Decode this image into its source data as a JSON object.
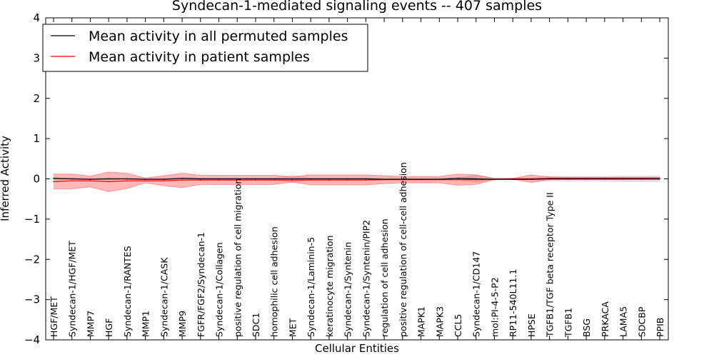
{
  "chart_data": {
    "type": "line",
    "title": "Syndecan-1-mediated signaling events -- 407 samples",
    "xlabel": "Cellular Entities",
    "ylabel": "Inferred Activity",
    "ylim": [
      -4,
      4
    ],
    "yticks": [
      -4,
      -3,
      -2,
      -1,
      0,
      1,
      2,
      3,
      4
    ],
    "ytick_labels": [
      "−4",
      "−3",
      "−2",
      "−1",
      "0",
      "1",
      "2",
      "3",
      "4"
    ],
    "legend_position": "top-left",
    "categories": [
      "HGF/MET",
      "Syndecan-1/HGF/MET",
      "MMP7",
      "HGF",
      "Syndecan-1/RANTES",
      "MMP1",
      "Syndecan-1/CASK",
      "MMP9",
      "FGFR/FGF2/Syndecan-1",
      "Syndecan-1/Collagen",
      "positive regulation of cell migration",
      "SDC1",
      "homophilic cell adhesion",
      "MET",
      "Syndecan-1/Laminin-5",
      "keratinocyte migration",
      "Syndecan-1/Syntenin",
      "Syndecan-1/Syntenin/PIP2",
      "regulation of cell adhesion",
      "positive regulation of cell-cell adhesion",
      "MAPK1",
      "MAPK3",
      "CCL5",
      "Syndecan-1/CD147",
      "mol:PI-4-5-P2",
      "RP11-540L11.1",
      "HPSE",
      "TGFB1/TGF beta receptor Type II",
      "TGFB1",
      "BSG",
      "PRKACA",
      "LAMA5",
      "SDCBP",
      "PPIB"
    ],
    "series": [
      {
        "name": "Mean activity in all permuted samples",
        "color": "#000000",
        "values": [
          0.01,
          0.0,
          -0.01,
          0.0,
          0.0,
          -0.01,
          -0.01,
          0.01,
          0.0,
          0.0,
          0.0,
          0.0,
          0.0,
          0.0,
          0.0,
          0.0,
          0.0,
          0.0,
          -0.01,
          -0.01,
          -0.01,
          -0.01,
          0.01,
          0.0,
          -0.01,
          -0.01,
          -0.01,
          0.0,
          0.0,
          0.0,
          0.0,
          0.0,
          0.0,
          0.0
        ],
        "band_upper": [
          0.03,
          0.03,
          0.03,
          0.03,
          0.03,
          0.03,
          0.03,
          0.04,
          0.03,
          0.03,
          0.03,
          0.03,
          0.03,
          0.1,
          0.03,
          0.03,
          0.03,
          0.03,
          0.03,
          0.03,
          0.03,
          0.03,
          0.04,
          0.1,
          0.03,
          0.03,
          0.03,
          0.07,
          0.07,
          0.07,
          0.07,
          0.08,
          0.08,
          0.08
        ],
        "band_lower": [
          -0.03,
          -0.03,
          -0.03,
          -0.03,
          -0.03,
          -0.03,
          -0.03,
          -0.03,
          -0.03,
          -0.03,
          -0.03,
          -0.03,
          -0.03,
          -0.1,
          -0.03,
          -0.03,
          -0.03,
          -0.03,
          -0.03,
          -0.03,
          -0.03,
          -0.03,
          -0.03,
          -0.1,
          -0.03,
          -0.03,
          -0.03,
          -0.07,
          -0.07,
          -0.07,
          -0.07,
          -0.08,
          -0.08,
          -0.08
        ]
      },
      {
        "name": "Mean activity in patient samples",
        "color": "#ff0000",
        "values": [
          -0.07,
          -0.05,
          -0.05,
          -0.07,
          -0.05,
          -0.05,
          -0.05,
          -0.03,
          -0.03,
          -0.03,
          -0.03,
          -0.03,
          -0.03,
          -0.03,
          -0.03,
          -0.03,
          -0.03,
          -0.03,
          -0.02,
          -0.02,
          -0.02,
          -0.02,
          -0.02,
          -0.02,
          -0.01,
          0.0,
          0.0,
          0.01,
          0.01,
          0.01,
          0.01,
          0.01,
          0.01,
          0.01
        ],
        "band_upper": [
          0.12,
          0.12,
          0.07,
          0.17,
          0.14,
          0.02,
          0.08,
          0.14,
          0.09,
          0.09,
          0.09,
          0.09,
          0.09,
          0.05,
          0.1,
          0.1,
          0.1,
          0.1,
          0.08,
          0.06,
          0.06,
          0.06,
          0.12,
          0.1,
          0.01,
          0.01,
          0.1,
          0.05,
          0.04,
          0.04,
          0.04,
          0.04,
          0.04,
          0.04
        ],
        "band_lower": [
          -0.25,
          -0.25,
          -0.2,
          -0.32,
          -0.24,
          -0.1,
          -0.17,
          -0.22,
          -0.14,
          -0.14,
          -0.14,
          -0.14,
          -0.14,
          -0.08,
          -0.15,
          -0.15,
          -0.15,
          -0.15,
          -0.12,
          -0.1,
          -0.1,
          -0.1,
          -0.16,
          -0.14,
          -0.02,
          -0.01,
          -0.09,
          -0.02,
          -0.02,
          -0.02,
          -0.02,
          -0.02,
          -0.02,
          -0.02
        ]
      }
    ]
  },
  "colors": {
    "permuted_band": "#c8c8c8",
    "patient_band": "#ff0000"
  }
}
